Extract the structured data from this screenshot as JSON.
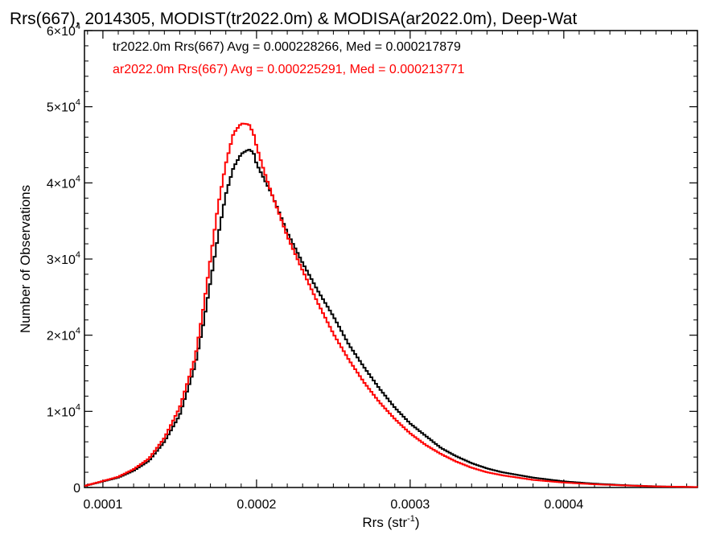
{
  "chart_data": {
    "type": "line",
    "title": "Rrs(667), 2014305, MODIST(tr2022.0m) & MODISA(ar2022.0m), Deep-Wat",
    "xlabel_main": "Rrs (str",
    "xlabel_sup": "-1",
    "xlabel_tail": ")",
    "ylabel": "Number of Observations",
    "xlim": [
      8.8e-05,
      0.000487
    ],
    "ylim": [
      0,
      60000
    ],
    "x_ticks": [
      {
        "value": 0.0001,
        "label": "0.0001"
      },
      {
        "value": 0.0002,
        "label": "0.0002"
      },
      {
        "value": 0.0003,
        "label": "0.0003"
      },
      {
        "value": 0.0004,
        "label": "0.0004"
      }
    ],
    "y_ticks": [
      {
        "value": 0,
        "label": "0"
      },
      {
        "value": 10000,
        "mant": "1×10",
        "exp": "4"
      },
      {
        "value": 20000,
        "mant": "2×10",
        "exp": "4"
      },
      {
        "value": 30000,
        "mant": "3×10",
        "exp": "4"
      },
      {
        "value": 40000,
        "mant": "4×10",
        "exp": "4"
      },
      {
        "value": 50000,
        "mant": "5×10",
        "exp": "4"
      },
      {
        "value": 60000,
        "mant": "6×10",
        "exp": "4"
      }
    ],
    "legend": [
      {
        "text": "tr2022.0m Rrs(667) Avg = 0.000228266, Med = 0.000217879",
        "color": "#000000"
      },
      {
        "text": "ar2022.0m Rrs(667) Avg = 0.000225291, Med = 0.000213771",
        "color": "#ff0000"
      }
    ],
    "grid": false,
    "legend_placement": "top-left",
    "series": [
      {
        "color": "#000000",
        "x": [
          8.8e-05,
          0.0001,
          0.00011,
          0.00012,
          0.00013,
          0.00014,
          0.00015,
          0.00016,
          0.000165,
          0.00017,
          0.000175,
          0.00018,
          0.000185,
          0.00019,
          0.000195,
          0.000198,
          0.0002,
          0.000205,
          0.00021,
          0.000215,
          0.00022,
          0.00023,
          0.00024,
          0.00025,
          0.00026,
          0.00027,
          0.00028,
          0.00029,
          0.0003,
          0.00031,
          0.00032,
          0.00033,
          0.00034,
          0.00035,
          0.00036,
          0.00038,
          0.0004,
          0.00042,
          0.00044,
          0.00046,
          0.000487
        ],
        "y": [
          200,
          800,
          1300,
          2200,
          3500,
          6000,
          9500,
          16000,
          21000,
          27000,
          33000,
          38500,
          42000,
          43800,
          44400,
          44000,
          42500,
          40500,
          38500,
          36000,
          33500,
          29500,
          25800,
          22500,
          18800,
          15800,
          13000,
          10500,
          8400,
          6800,
          5200,
          4100,
          3200,
          2500,
          2000,
          1300,
          800,
          500,
          300,
          150,
          50
        ]
      },
      {
        "color": "#ff0000",
        "x": [
          8.8e-05,
          0.0001,
          0.00011,
          0.00012,
          0.00013,
          0.00014,
          0.00015,
          0.00016,
          0.000165,
          0.00017,
          0.000175,
          0.00018,
          0.000185,
          0.00019,
          0.000195,
          0.000198,
          0.0002,
          0.000205,
          0.00021,
          0.000215,
          0.00022,
          0.00023,
          0.00024,
          0.00025,
          0.00026,
          0.00027,
          0.00028,
          0.00029,
          0.0003,
          0.00031,
          0.00032,
          0.00033,
          0.00034,
          0.00035,
          0.00036,
          0.00038,
          0.0004,
          0.00042,
          0.00044,
          0.00046,
          0.000487
        ],
        "y": [
          200,
          850,
          1400,
          2400,
          3800,
          6500,
          10500,
          17000,
          23000,
          30000,
          37000,
          42500,
          46500,
          47800,
          47700,
          46500,
          44800,
          41500,
          38500,
          35800,
          33000,
          28500,
          24200,
          20200,
          16800,
          13800,
          11200,
          9000,
          7100,
          5600,
          4400,
          3400,
          2600,
          2000,
          1600,
          1000,
          650,
          420,
          270,
          140,
          60
        ]
      }
    ]
  }
}
